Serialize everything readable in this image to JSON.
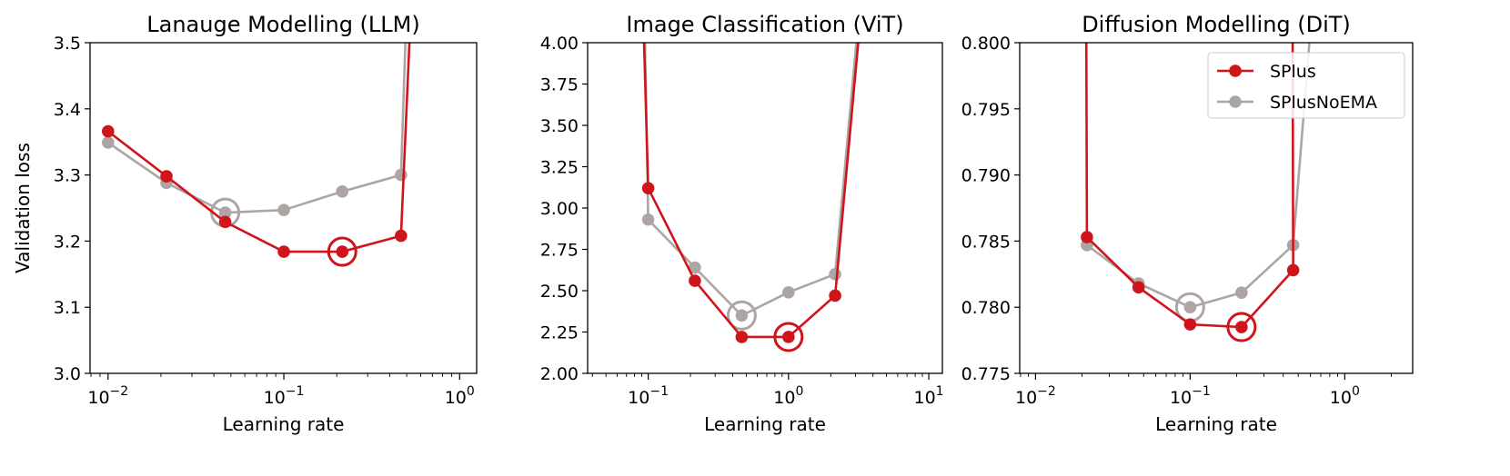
{
  "chart_data": [
    {
      "type": "line",
      "title": "Lanauge Modelling (LLM)",
      "xlabel": "Learning rate",
      "ylabel": "Validation loss",
      "xscale": "log",
      "xlim": [
        0.0079,
        1.25
      ],
      "ylim": [
        3.0,
        3.5
      ],
      "xticks": [
        0.01,
        0.1,
        1
      ],
      "xtick_labels": [
        [
          "10",
          "−2"
        ],
        [
          "10",
          "−1"
        ],
        [
          "10",
          "0"
        ]
      ],
      "yticks": [
        3.0,
        3.1,
        3.2,
        3.3,
        3.4,
        3.5
      ],
      "ytick_labels": [
        "3.0",
        "3.1",
        "3.2",
        "3.3",
        "3.4",
        "3.5"
      ],
      "series": [
        {
          "name": "SPlus",
          "color": "#d0141c",
          "x": [
            0.01,
            0.0215,
            0.0464,
            0.1,
            0.215,
            0.464,
            0.53
          ],
          "y": [
            3.366,
            3.298,
            3.229,
            3.184,
            3.184,
            3.208,
            3.56
          ],
          "markers": [
            true,
            true,
            true,
            true,
            true,
            true,
            false
          ],
          "best_index": 4
        },
        {
          "name": "SPlusNoEMA",
          "color": "#ada5a3",
          "x": [
            0.01,
            0.0215,
            0.0464,
            0.1,
            0.215,
            0.464,
            0.5
          ],
          "y": [
            3.349,
            3.288,
            3.243,
            3.247,
            3.275,
            3.3,
            3.56
          ],
          "markers": [
            true,
            true,
            true,
            true,
            true,
            true,
            false
          ],
          "best_index": 2
        }
      ]
    },
    {
      "type": "line",
      "title": "Image Classification (ViT)",
      "xlabel": "Learning rate",
      "ylabel": "",
      "xscale": "log",
      "xlim": [
        0.037,
        12.5
      ],
      "ylim": [
        2.0,
        4.0
      ],
      "xticks": [
        0.1,
        1,
        10
      ],
      "xtick_labels": [
        [
          "10",
          "−1"
        ],
        [
          "10",
          "0"
        ],
        [
          "10",
          "1"
        ]
      ],
      "yticks": [
        2.0,
        2.25,
        2.5,
        2.75,
        3.0,
        3.25,
        3.5,
        3.75,
        4.0
      ],
      "ytick_labels": [
        "2.00",
        "2.25",
        "2.50",
        "2.75",
        "3.00",
        "3.25",
        "3.50",
        "3.75",
        "4.00"
      ],
      "series": [
        {
          "name": "SPlus",
          "color": "#d0141c",
          "x": [
            0.092,
            0.1,
            0.215,
            0.464,
            1.0,
            2.15,
            3.3
          ],
          "y": [
            4.2,
            3.12,
            2.56,
            2.22,
            2.22,
            2.47,
            4.2
          ],
          "markers": [
            false,
            true,
            true,
            true,
            true,
            true,
            false
          ],
          "best_index": 4
        },
        {
          "name": "SPlusNoEMA",
          "color": "#ada5a3",
          "x": [
            0.094,
            0.1,
            0.215,
            0.464,
            1.0,
            2.15,
            3.2
          ],
          "y": [
            4.2,
            2.93,
            2.64,
            2.35,
            2.49,
            2.6,
            4.2
          ],
          "markers": [
            false,
            true,
            true,
            true,
            true,
            true,
            false
          ],
          "best_index": 3
        }
      ]
    },
    {
      "type": "line",
      "title": "Diffusion Modelling (DiT)",
      "xlabel": "Learning rate",
      "ylabel": "",
      "xscale": "log",
      "xlim": [
        0.0079,
        2.75
      ],
      "ylim": [
        0.775,
        0.8
      ],
      "xticks": [
        0.01,
        0.1,
        1
      ],
      "xtick_labels": [
        [
          "10",
          "−2"
        ],
        [
          "10",
          "−1"
        ],
        [
          "10",
          "0"
        ]
      ],
      "yticks": [
        0.775,
        0.78,
        0.785,
        0.79,
        0.795,
        0.8
      ],
      "ytick_labels": [
        "0.775",
        "0.780",
        "0.785",
        "0.790",
        "0.795",
        "0.800"
      ],
      "legend": {
        "placement": "upper-right",
        "entries": [
          "SPlus",
          "SPlusNoEMA"
        ]
      },
      "series": [
        {
          "name": "SPlus",
          "color": "#d0141c",
          "x": [
            0.0213,
            0.0215,
            0.0464,
            0.1,
            0.215,
            0.464,
            0.46
          ],
          "y": [
            0.801,
            0.7853,
            0.7815,
            0.7787,
            0.7785,
            0.7828,
            0.801
          ],
          "markers": [
            false,
            true,
            true,
            true,
            true,
            true,
            false
          ],
          "best_index": 4
        },
        {
          "name": "SPlusNoEMA",
          "color": "#ada5a3",
          "x": [
            0.0215,
            0.0464,
            0.1,
            0.215,
            0.464,
            0.6
          ],
          "y": [
            0.7847,
            0.7818,
            0.78,
            0.7811,
            0.7847,
            0.801
          ],
          "markers": [
            true,
            true,
            true,
            true,
            true,
            false
          ],
          "best_index": 2
        }
      ]
    }
  ]
}
